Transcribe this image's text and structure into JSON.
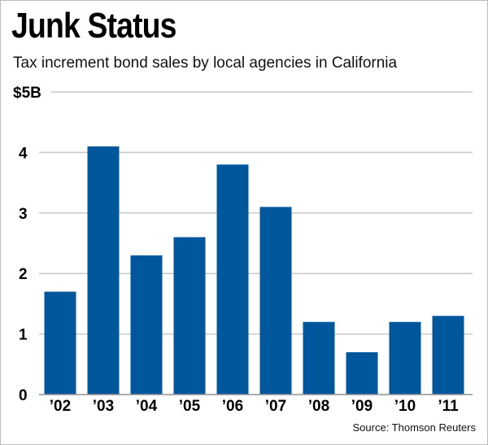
{
  "chart_data": {
    "type": "bar",
    "title": "Junk Status",
    "subtitle": "Tax increment bond sales by local agencies in California",
    "source": "Source: Thomson Reuters",
    "categories": [
      "’02",
      "’03",
      "’04",
      "’05",
      "’06",
      "’07",
      "’08",
      "’09",
      "’10",
      "’11"
    ],
    "values": [
      1.7,
      4.1,
      2.3,
      2.6,
      3.8,
      3.1,
      1.2,
      0.7,
      1.2,
      1.3
    ],
    "ylim": [
      0,
      5
    ],
    "yticks": [
      0,
      1,
      2,
      3,
      4,
      5
    ],
    "ytick_labels": [
      "0",
      "1",
      "2",
      "3",
      "4",
      "$5B"
    ],
    "grid": true,
    "bar_color": "#01579b",
    "grid_color": "#c8c8c8"
  }
}
